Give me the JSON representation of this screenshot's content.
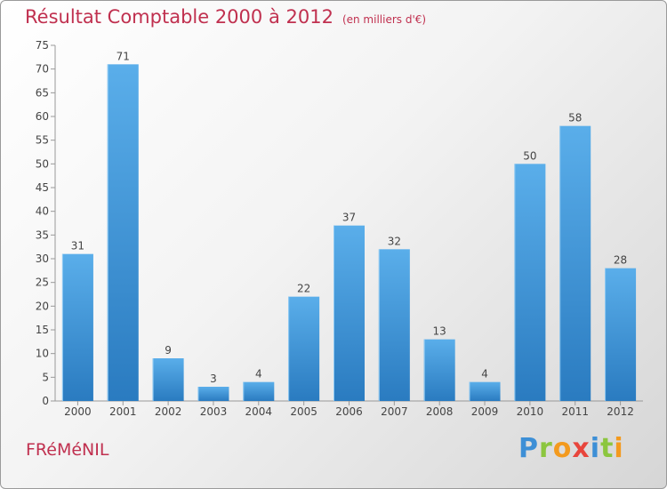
{
  "header": {
    "title": "Résultat Comptable 2000 à 2012",
    "unit_note": "(en milliers d'€)"
  },
  "footer": {
    "commune": "FRéMéNIL",
    "logo_letters": [
      "P",
      "r",
      "o",
      "x",
      "i",
      "t",
      "i"
    ],
    "logo_colors": [
      "#3d8fd6",
      "#8cc63f",
      "#f39a1e",
      "#e8453c",
      "#3d8fd6",
      "#8cc63f",
      "#f39a1e"
    ]
  },
  "chart_data": {
    "type": "bar",
    "title": "Résultat Comptable 2000 à 2012",
    "subtitle": "(en milliers d'€)",
    "xlabel": "",
    "ylabel": "",
    "categories": [
      "2000",
      "2001",
      "2002",
      "2003",
      "2004",
      "2005",
      "2006",
      "2007",
      "2008",
      "2009",
      "2010",
      "2011",
      "2012"
    ],
    "values": [
      31,
      71,
      9,
      3,
      4,
      22,
      37,
      32,
      13,
      4,
      50,
      58,
      28
    ],
    "ylim": [
      0,
      75
    ],
    "yticks": [
      0,
      5,
      10,
      15,
      20,
      25,
      30,
      35,
      40,
      45,
      50,
      55,
      60,
      65,
      70,
      75
    ],
    "grid": false,
    "bar_color_top": "#5aaeea",
    "bar_color_bottom": "#2a7bc0"
  }
}
